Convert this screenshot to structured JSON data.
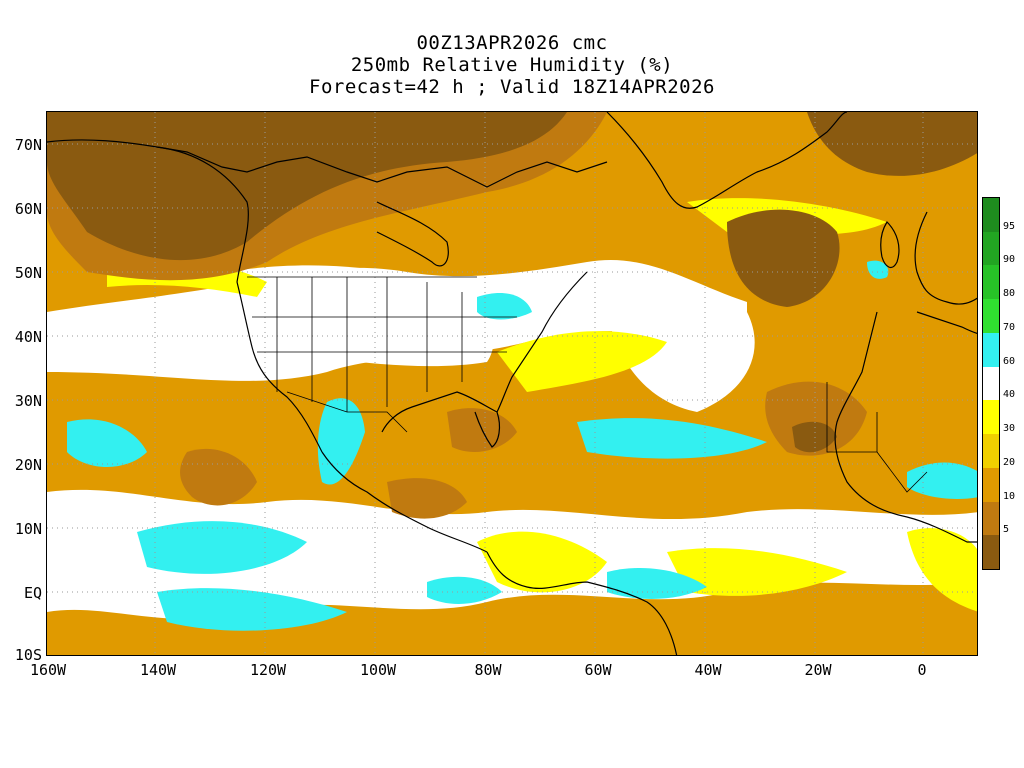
{
  "title": {
    "line1": "00Z13APR2026 cmc",
    "line2": "250mb Relative Humidity (%)",
    "line3": "Forecast=42 h ; Valid 18Z14APR2026"
  },
  "lat_labels": [
    "70N",
    "60N",
    "50N",
    "40N",
    "30N",
    "20N",
    "10N",
    "EQ",
    "10S"
  ],
  "lon_labels": [
    "160W",
    "140W",
    "120W",
    "100W",
    "80W",
    "60W",
    "40W",
    "20W",
    "0"
  ],
  "colorbar": {
    "levels": [
      {
        "label": "95",
        "color": "#1e8c1e"
      },
      {
        "label": "90",
        "color": "#22a522"
      },
      {
        "label": "80",
        "color": "#27c227"
      },
      {
        "label": "70",
        "color": "#30e030"
      },
      {
        "label": "60",
        "color": "#33f0f0"
      },
      {
        "label": "40",
        "color": "#ffffff"
      },
      {
        "label": "30",
        "color": "#ffff00"
      },
      {
        "label": "20",
        "color": "#f0d000"
      },
      {
        "label": "10",
        "color": "#e09a00"
      },
      {
        "label": "5",
        "color": "#c07a10"
      },
      {
        "label": "",
        "color": "#8a5a10"
      }
    ]
  },
  "colors": {
    "very_dry": "#8a5a10",
    "dry": "#c07a10",
    "moderate": "#e09a00",
    "light": "#f0d000",
    "yellow": "#ffff00",
    "white": "#ffffff",
    "cyan": "#33f0f0"
  }
}
